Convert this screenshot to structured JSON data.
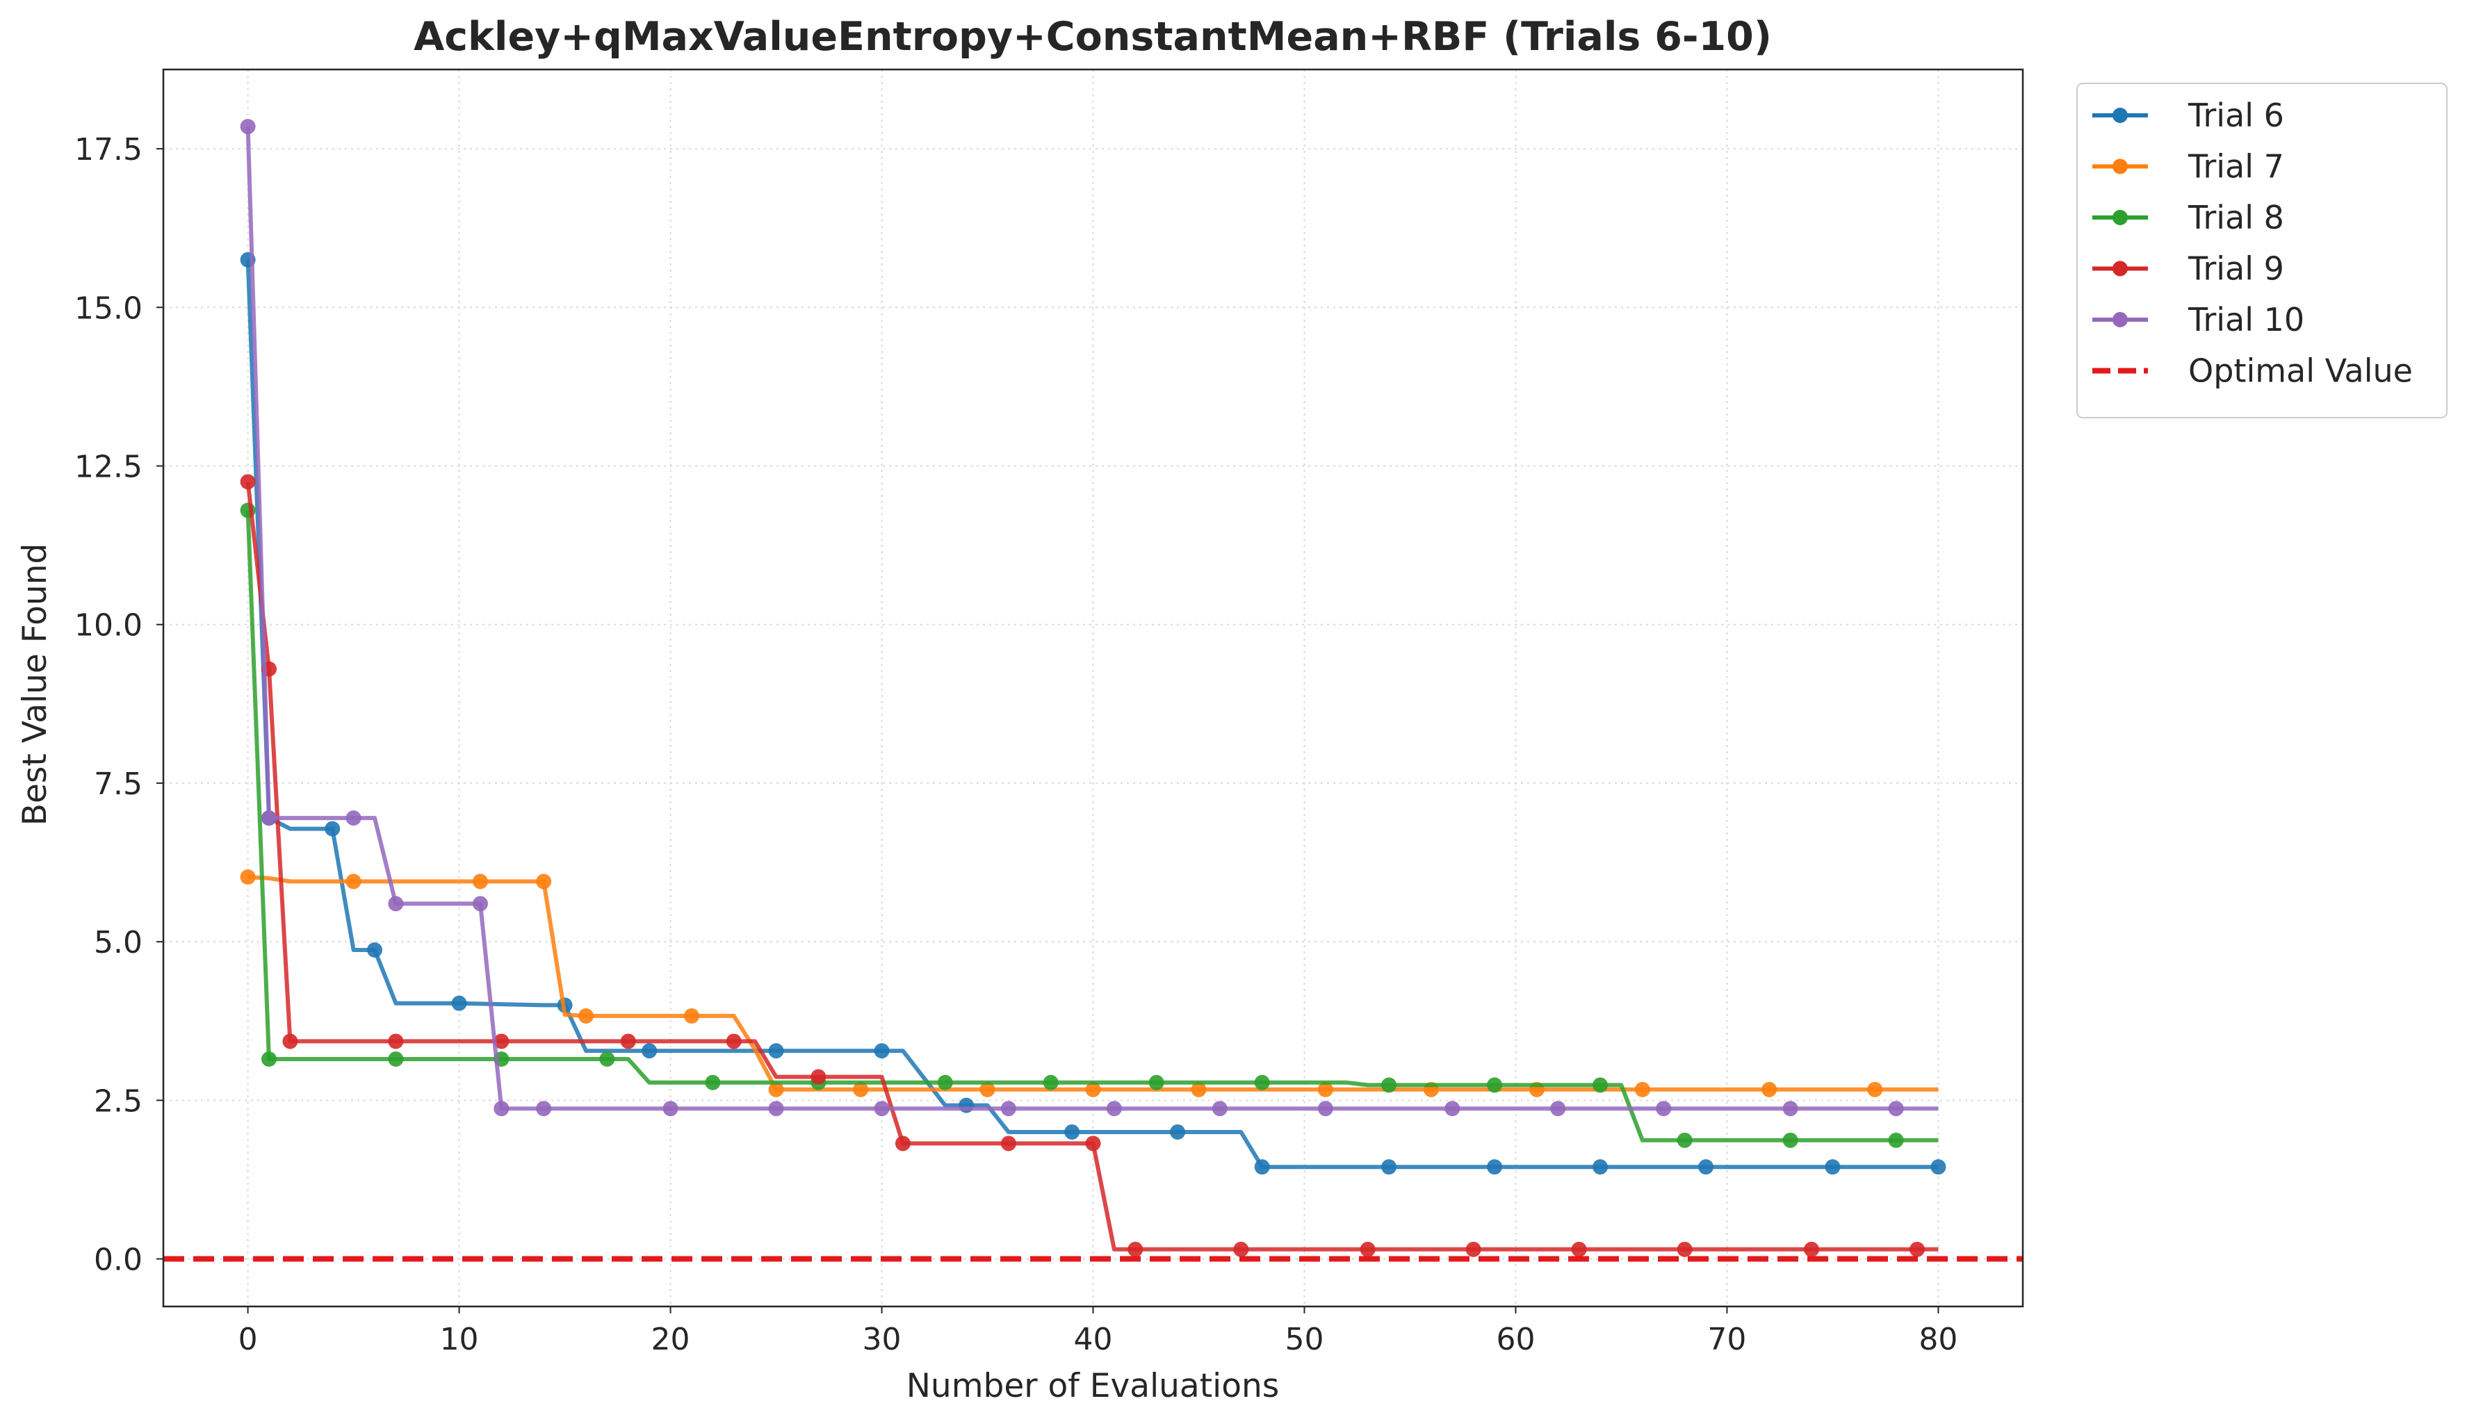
{
  "chart_data": {
    "type": "line",
    "title": "Ackley+qMaxValueEntropy+ConstantMean+RBF (Trials 6-10)",
    "xlabel": "Number of Evaluations",
    "ylabel": "Best Value Found",
    "xlim": [
      -4,
      84
    ],
    "ylim": [
      -0.75,
      18.75
    ],
    "xticks": [
      0,
      10,
      20,
      30,
      40,
      50,
      60,
      70,
      80
    ],
    "yticks": [
      0.0,
      2.5,
      5.0,
      7.5,
      10.0,
      12.5,
      15.0,
      17.5
    ],
    "xtick_labels": [
      "0",
      "10",
      "20",
      "30",
      "40",
      "50",
      "60",
      "70",
      "80"
    ],
    "ytick_labels": [
      "0.0",
      "2.5",
      "5.0",
      "7.5",
      "10.0",
      "12.5",
      "15.0",
      "17.5"
    ],
    "grid": true,
    "legend_position": "outside-top-right",
    "series": [
      {
        "name": "Trial 6",
        "color": "#1f77b4",
        "points": [
          [
            0,
            15.75
          ],
          [
            1,
            6.95
          ],
          [
            2,
            6.78
          ],
          [
            4,
            6.78
          ],
          [
            5,
            4.87
          ],
          [
            6,
            4.87
          ],
          [
            7,
            4.03
          ],
          [
            10,
            4.03
          ],
          [
            14,
            4.0
          ],
          [
            15,
            4.0
          ],
          [
            16,
            3.28
          ],
          [
            19,
            3.28
          ],
          [
            25,
            3.28
          ],
          [
            30,
            3.28
          ],
          [
            31,
            3.28
          ],
          [
            33,
            2.42
          ],
          [
            34,
            2.42
          ],
          [
            35,
            2.42
          ],
          [
            36,
            2.0
          ],
          [
            39,
            2.0
          ],
          [
            44,
            2.0
          ],
          [
            47,
            2.0
          ],
          [
            48,
            1.45
          ],
          [
            54,
            1.45
          ],
          [
            59,
            1.45
          ],
          [
            64,
            1.45
          ],
          [
            69,
            1.45
          ],
          [
            75,
            1.45
          ],
          [
            80,
            1.45
          ]
        ],
        "markers": [
          0,
          1,
          4,
          6,
          10,
          15,
          19,
          25,
          30,
          34,
          39,
          44,
          48,
          54,
          59,
          64,
          69,
          75,
          80
        ]
      },
      {
        "name": "Trial 7",
        "color": "#ff7f0e",
        "points": [
          [
            0,
            6.02
          ],
          [
            1,
            6.0
          ],
          [
            2,
            5.95
          ],
          [
            5,
            5.95
          ],
          [
            11,
            5.95
          ],
          [
            14,
            5.95
          ],
          [
            15,
            3.85
          ],
          [
            16,
            3.83
          ],
          [
            21,
            3.83
          ],
          [
            23,
            3.83
          ],
          [
            24,
            3.3
          ],
          [
            25,
            2.67
          ],
          [
            29,
            2.67
          ],
          [
            35,
            2.67
          ],
          [
            40,
            2.67
          ],
          [
            45,
            2.67
          ],
          [
            51,
            2.67
          ],
          [
            56,
            2.67
          ],
          [
            61,
            2.67
          ],
          [
            66,
            2.67
          ],
          [
            72,
            2.67
          ],
          [
            77,
            2.67
          ],
          [
            80,
            2.67
          ]
        ],
        "markers": [
          0,
          5,
          11,
          14,
          16,
          21,
          25,
          29,
          35,
          40,
          45,
          51,
          56,
          61,
          66,
          72,
          77
        ]
      },
      {
        "name": "Trial 8",
        "color": "#2ca02c",
        "points": [
          [
            0,
            11.8
          ],
          [
            1,
            3.15
          ],
          [
            7,
            3.15
          ],
          [
            12,
            3.15
          ],
          [
            17,
            3.15
          ],
          [
            18,
            3.15
          ],
          [
            19,
            2.78
          ],
          [
            22,
            2.78
          ],
          [
            27,
            2.78
          ],
          [
            33,
            2.78
          ],
          [
            38,
            2.78
          ],
          [
            43,
            2.78
          ],
          [
            48,
            2.78
          ],
          [
            52,
            2.78
          ],
          [
            53,
            2.74
          ],
          [
            54,
            2.74
          ],
          [
            59,
            2.74
          ],
          [
            64,
            2.74
          ],
          [
            65,
            2.74
          ],
          [
            66,
            1.87
          ],
          [
            68,
            1.87
          ],
          [
            73,
            1.87
          ],
          [
            78,
            1.87
          ],
          [
            80,
            1.87
          ]
        ],
        "markers": [
          0,
          1,
          7,
          12,
          17,
          22,
          27,
          33,
          38,
          43,
          48,
          54,
          59,
          64,
          68,
          73,
          78
        ]
      },
      {
        "name": "Trial 9",
        "color": "#d62728",
        "points": [
          [
            0,
            12.25
          ],
          [
            1,
            9.3
          ],
          [
            2,
            3.43
          ],
          [
            7,
            3.43
          ],
          [
            12,
            3.43
          ],
          [
            18,
            3.43
          ],
          [
            23,
            3.43
          ],
          [
            24,
            3.43
          ],
          [
            25,
            2.87
          ],
          [
            27,
            2.87
          ],
          [
            30,
            2.87
          ],
          [
            31,
            1.82
          ],
          [
            36,
            1.82
          ],
          [
            40,
            1.82
          ],
          [
            41,
            0.15
          ],
          [
            42,
            0.15
          ],
          [
            47,
            0.15
          ],
          [
            53,
            0.15
          ],
          [
            58,
            0.15
          ],
          [
            63,
            0.15
          ],
          [
            68,
            0.15
          ],
          [
            74,
            0.15
          ],
          [
            79,
            0.15
          ],
          [
            80,
            0.15
          ]
        ],
        "markers": [
          0,
          1,
          2,
          7,
          12,
          18,
          23,
          27,
          31,
          36,
          40,
          42,
          47,
          53,
          58,
          63,
          68,
          74,
          79
        ]
      },
      {
        "name": "Trial 10",
        "color": "#9467bd",
        "points": [
          [
            0,
            17.85
          ],
          [
            1,
            6.95
          ],
          [
            5,
            6.95
          ],
          [
            6,
            6.95
          ],
          [
            7,
            5.6
          ],
          [
            11,
            5.6
          ],
          [
            12,
            2.37
          ],
          [
            14,
            2.37
          ],
          [
            20,
            2.37
          ],
          [
            25,
            2.37
          ],
          [
            30,
            2.37
          ],
          [
            36,
            2.37
          ],
          [
            41,
            2.37
          ],
          [
            46,
            2.37
          ],
          [
            51,
            2.37
          ],
          [
            57,
            2.37
          ],
          [
            62,
            2.37
          ],
          [
            67,
            2.37
          ],
          [
            73,
            2.37
          ],
          [
            78,
            2.37
          ],
          [
            80,
            2.37
          ]
        ],
        "markers": [
          0,
          1,
          5,
          7,
          11,
          12,
          14,
          20,
          25,
          30,
          36,
          41,
          46,
          51,
          57,
          62,
          67,
          73,
          78
        ]
      }
    ],
    "reference_line": {
      "name": "Optimal Value",
      "y": 0.0,
      "color": "#e31a1c",
      "style": "dashed"
    }
  }
}
